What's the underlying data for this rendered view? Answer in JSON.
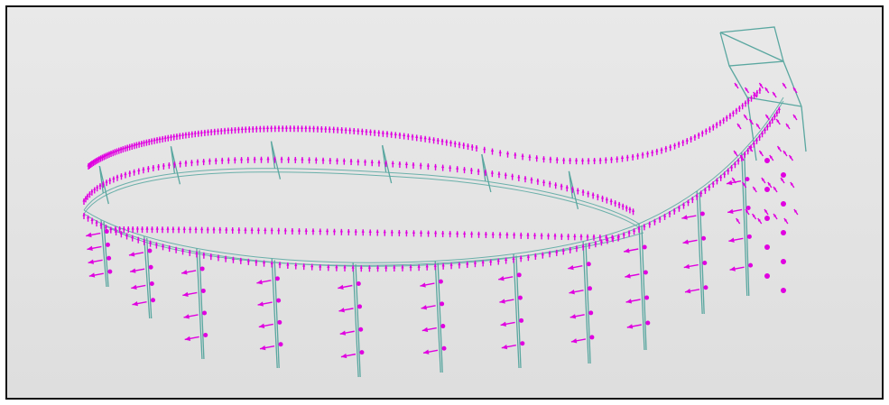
{
  "viewport": {
    "background": "#e3e3e3",
    "member_color": "#5aa7a0",
    "load_color": "#e000e0"
  }
}
